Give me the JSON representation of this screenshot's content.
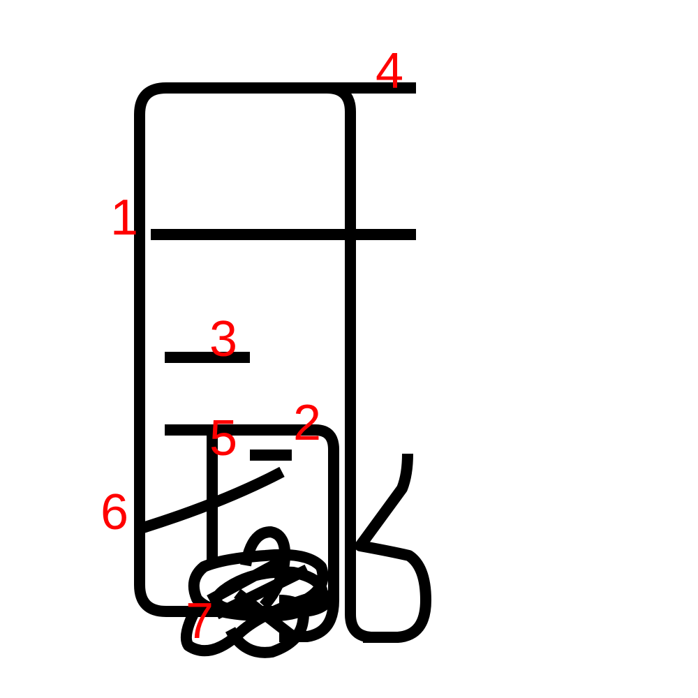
{
  "colors": {
    "stroke": "#000000",
    "label": "#ff0000",
    "background": "#ffffff"
  },
  "strokes": [
    {
      "id": "stroke-1",
      "label": "1"
    },
    {
      "id": "stroke-2",
      "label": "2"
    },
    {
      "id": "stroke-3",
      "label": "3"
    },
    {
      "id": "stroke-4",
      "label": "4"
    },
    {
      "id": "stroke-5",
      "label": "5"
    },
    {
      "id": "stroke-6",
      "label": "6"
    },
    {
      "id": "stroke-7",
      "label": "7"
    }
  ]
}
